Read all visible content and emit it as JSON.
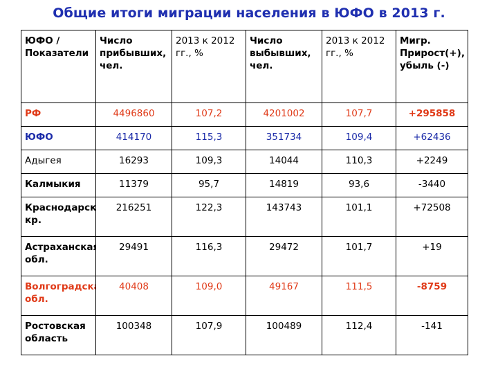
{
  "title": "Общие итоги миграции населения в ЮФО в 2013 г.",
  "colors": {
    "title": "#1f2fb0",
    "highlight_red": "#e03a18",
    "highlight_blue": "#1a2aa8",
    "text": "#000000"
  },
  "table": {
    "headers": [
      "ЮФО / Показатели",
      "Число прибывших, чел.",
      "2013 к 2012 гг., %",
      "Число выбывших, чел.",
      "2013 к 2012 гг., %",
      "Мигр. Прирост(+), убыль (-)"
    ],
    "rows": [
      {
        "name": "РФ",
        "arrived": "4496860",
        "arrived_pct": "107,2",
        "departed": "4201002",
        "departed_pct": "107,7",
        "net": "+295858",
        "style": "red"
      },
      {
        "name": "ЮФО",
        "arrived": "414170",
        "arrived_pct": "115,3",
        "departed": "351734",
        "departed_pct": "109,4",
        "net": "+62436",
        "style": "blue"
      },
      {
        "name": "Адыгея",
        "arrived": "16293",
        "arrived_pct": "109,3",
        "departed": "14044",
        "departed_pct": "110,3",
        "net": "+2249",
        "style": "normal"
      },
      {
        "name": "Калмыкия",
        "arrived": "11379",
        "arrived_pct": "95,7",
        "departed": "14819",
        "departed_pct": "93,6",
        "net": "-3440",
        "style": "normal"
      },
      {
        "name": "Краснодарский кр.",
        "arrived": "216251",
        "arrived_pct": "122,3",
        "departed": "143743",
        "departed_pct": "101,1",
        "net": "+72508",
        "style": "normal"
      },
      {
        "name": "Астраханская обл.",
        "arrived": "29491",
        "arrived_pct": "116,3",
        "departed": "29472",
        "departed_pct": "101,7",
        "net": "+19",
        "style": "normal"
      },
      {
        "name": "Волгоградская обл.",
        "arrived": "40408",
        "arrived_pct": "109,0",
        "departed": "49167",
        "departed_pct": "111,5",
        "net": "-8759",
        "style": "red"
      },
      {
        "name": "Ростовская область",
        "arrived": "100348",
        "arrived_pct": "107,9",
        "departed": "100489",
        "departed_pct": "112,4",
        "net": "-141",
        "style": "normal"
      }
    ]
  }
}
